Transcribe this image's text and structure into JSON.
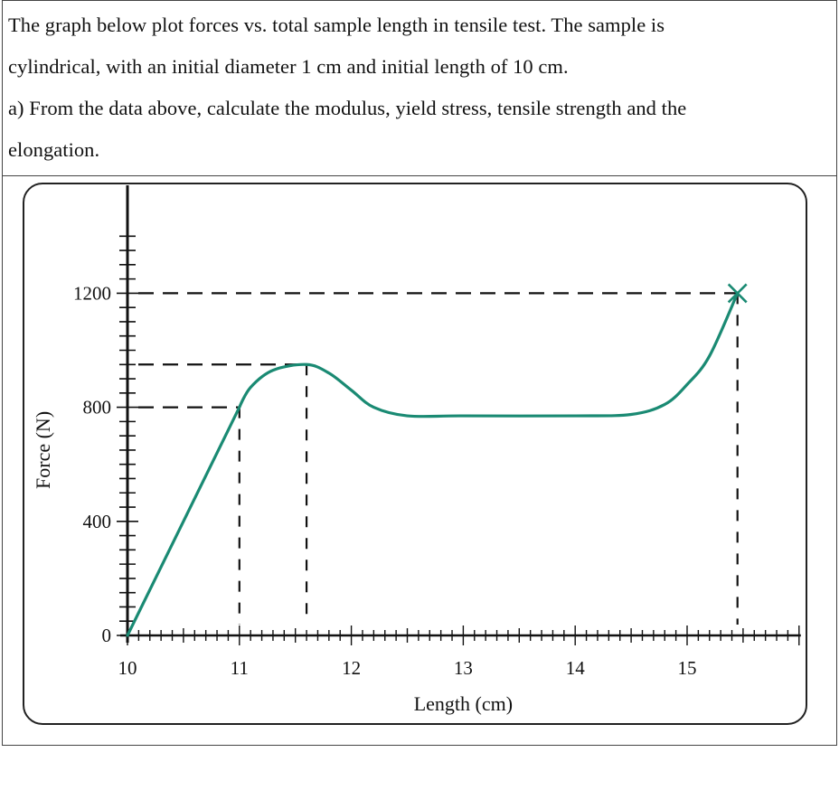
{
  "question": {
    "line1": "The graph below plot forces vs. total sample length in tensile test. The sample is",
    "line2": "cylindrical, with an initial diameter 1 cm and initial length of 10 cm.",
    "line3": "a) From the data above, calculate the modulus, yield stress, tensile strength and the",
    "line4": "elongation."
  },
  "colors": {
    "curve": "#1a8a73",
    "axis": "#111111",
    "dashed": "#111111"
  },
  "chart_data": {
    "type": "line",
    "title": "",
    "xlabel": "Length (cm)",
    "ylabel": "Force (N)",
    "xlim": [
      10,
      16
    ],
    "ylim": [
      0,
      1400
    ],
    "x_ticks": [
      10,
      11,
      12,
      13,
      14,
      15
    ],
    "y_ticks": [
      0,
      400,
      800,
      1200
    ],
    "grid": false,
    "legend": "none",
    "series": [
      {
        "x": [
          10,
          11.0,
          11.1,
          11.3,
          11.6,
          11.8,
          12.0,
          12.2,
          12.5,
          13.0,
          14.0,
          14.5,
          14.8,
          15.0,
          15.2,
          15.45
        ],
        "y": [
          0,
          800,
          870,
          930,
          950,
          920,
          860,
          800,
          770,
          770,
          770,
          775,
          810,
          880,
          980,
          1200
        ]
      }
    ],
    "reference_points": [
      {
        "x": 11.0,
        "y": 800
      },
      {
        "x": 11.6,
        "y": 950
      },
      {
        "x": 15.45,
        "y": 1200
      }
    ],
    "fracture_marker": {
      "x": 15.45,
      "y": 1200
    }
  }
}
